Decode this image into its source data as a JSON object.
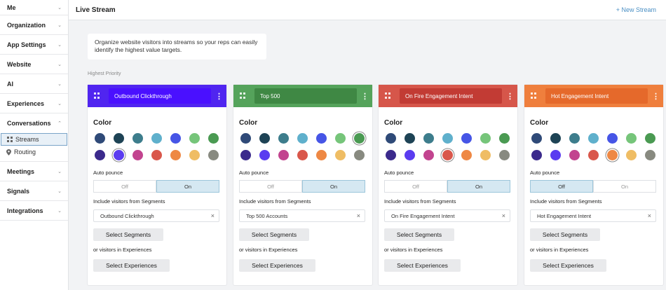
{
  "sidebar": {
    "items": [
      {
        "label": "Me"
      },
      {
        "label": "Organization"
      },
      {
        "label": "App Settings"
      },
      {
        "label": "Website"
      },
      {
        "label": "AI"
      },
      {
        "label": "Experiences"
      }
    ],
    "conversations": {
      "label": "Conversations",
      "sub": [
        {
          "label": "Streams",
          "icon": "grid-icon",
          "active": true
        },
        {
          "label": "Routing",
          "icon": "pin-icon",
          "active": false
        }
      ]
    },
    "items_after": [
      {
        "label": "Meetings"
      },
      {
        "label": "Signals"
      },
      {
        "label": "Integrations"
      }
    ]
  },
  "header": {
    "title": "Live Stream",
    "new_stream": "+ New Stream"
  },
  "intro": {
    "text": "Organize website visitors into streams so your reps can easily identify the highest value targets."
  },
  "priority_label": "Highest Priority",
  "palette": [
    "#2f4a78",
    "#1e4355",
    "#3d7d8c",
    "#5fb0cc",
    "#4655e6",
    "#76c57a",
    "#4a9a52",
    "#3b2a8c",
    "#5a3cf0",
    "#c2448f",
    "#d9574b",
    "#ee8844",
    "#efbd64",
    "#888a80"
  ],
  "labels": {
    "color": "Color",
    "auto_pounce": "Auto pounce",
    "off": "Off",
    "on": "On",
    "include_segments": "Include visitors from Segments",
    "select_segments": "Select Segments",
    "or_experiences": "or visitors in Experiences",
    "select_experiences": "Select Experiences"
  },
  "streams": [
    {
      "name": "Outbound Clickthrough",
      "header_color": "#5025f0",
      "name_bg": "#4a10ff",
      "selected_color": 8,
      "auto_pounce": "On",
      "segment": "Outbound Clickthrough"
    },
    {
      "name": "Top 500",
      "header_color": "#55a35b",
      "name_bg": "#3f8844",
      "selected_color": 6,
      "auto_pounce": "On",
      "segment": "Top 500 Accounts"
    },
    {
      "name": "On Fire Engagement Intent",
      "header_color": "#d6564a",
      "name_bg": "#c23b34",
      "selected_color": 10,
      "auto_pounce": "On",
      "segment": "On Fire Engagement Intent"
    },
    {
      "name": "Hot Engagement Intent",
      "header_color": "#ef7f3d",
      "name_bg": "#e5692b",
      "selected_color": 11,
      "auto_pounce": "Off",
      "segment": "Hot Engagement Intent"
    }
  ]
}
